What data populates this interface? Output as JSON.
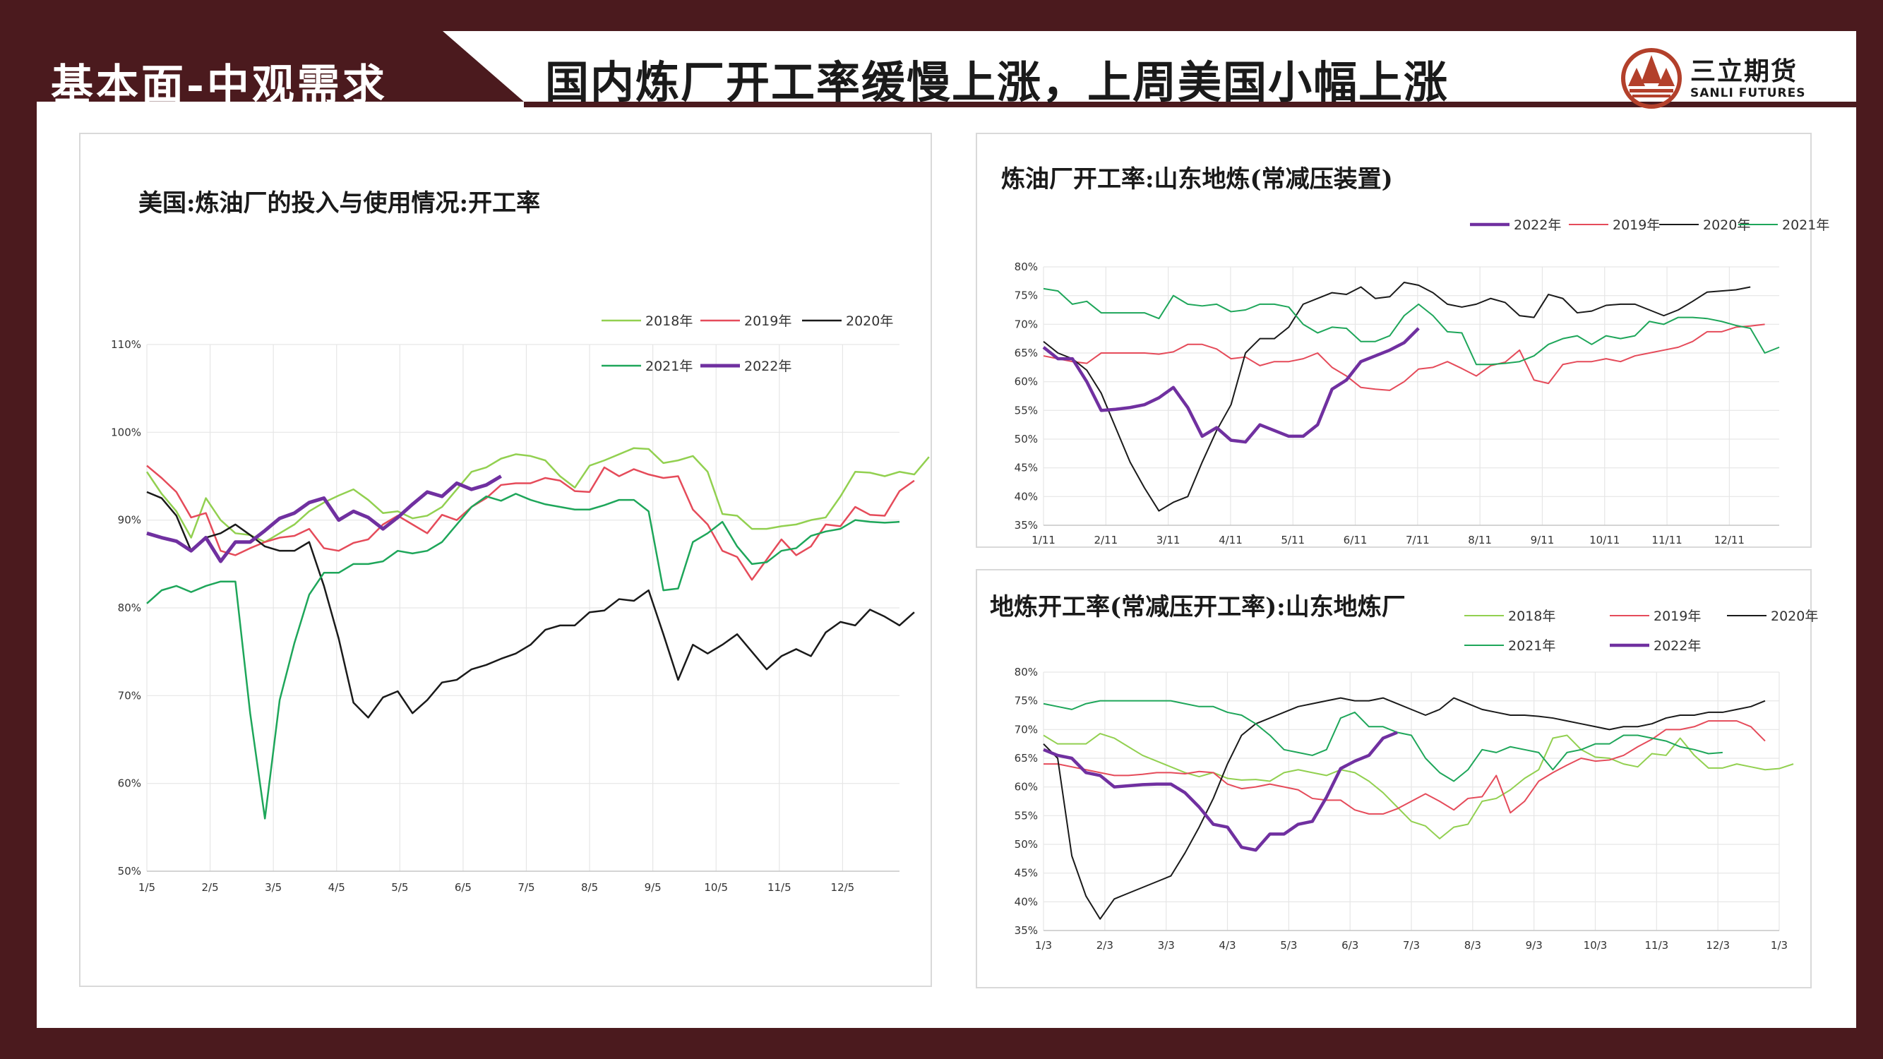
{
  "header": {
    "section_title": "基本面-中观需求",
    "main_title": "国内炼厂开工率缓慢上涨，上周美国小幅上涨",
    "brand_cn": "三立期货",
    "brand_en": "SANLI FUTURES",
    "colors": {
      "frame": "#4b1a1e",
      "accent": "#b3402b"
    }
  },
  "chart_data": [
    {
      "type": "line",
      "title": "美国:炼油厂的投入与使用情况:开工率",
      "x_ticks": [
        "1/5",
        "2/5",
        "3/5",
        "4/5",
        "5/5",
        "6/5",
        "7/5",
        "8/5",
        "9/5",
        "10/5",
        "11/5",
        "12/5"
      ],
      "y_ticks": [
        "50%",
        "60%",
        "70%",
        "80%",
        "90%",
        "100%",
        "110%"
      ],
      "ylim": [
        50,
        110
      ],
      "x_unit": "week",
      "x_range": [
        0,
        51
      ],
      "grid": true,
      "legend_position": "top-right",
      "series": [
        {
          "name": "2018年",
          "color": "#92d050",
          "width": 2.5,
          "values": [
            95.5,
            93,
            91,
            88,
            92.5,
            90,
            88.5,
            88.3,
            87.5,
            88.5,
            89.5,
            91,
            92,
            92.8,
            93.5,
            92.3,
            90.8,
            91,
            90.2,
            90.5,
            91.5,
            93.5,
            95.5,
            96,
            97,
            97.5,
            97.3,
            96.8,
            95,
            93.7,
            96.2,
            96.8,
            97.5,
            98.2,
            98.1,
            96.5,
            96.8,
            97.3,
            95.5,
            90.7,
            90.5,
            89,
            89,
            89.3,
            89.5,
            90,
            90.3,
            92.7,
            95.5,
            95.4,
            95,
            95.5,
            95.2,
            97.2
          ]
        },
        {
          "name": "2019年",
          "color": "#e54b5a",
          "width": 2.5,
          "values": [
            96.2,
            94.8,
            93.2,
            90.3,
            90.8,
            86.5,
            86,
            86.8,
            87.5,
            88,
            88.2,
            89,
            86.8,
            86.5,
            87.4,
            87.8,
            89.5,
            90.5,
            89.5,
            88.5,
            90.6,
            90,
            91.5,
            92.5,
            94,
            94.2,
            94.2,
            94.8,
            94.5,
            93.3,
            93.2,
            96,
            95,
            95.8,
            95.2,
            94.8,
            95,
            91.2,
            89.5,
            86.5,
            85.8,
            83.2,
            85.5,
            87.8,
            86,
            87,
            89.5,
            89.3,
            91.5,
            90.6,
            90.5,
            93.3,
            94.5
          ]
        },
        {
          "name": "2020年",
          "color": "#1a1a1a",
          "width": 2.5,
          "values": [
            93.2,
            92.5,
            90.5,
            86.5,
            88,
            88.5,
            89.5,
            88.3,
            87,
            86.5,
            86.5,
            87.5,
            82.5,
            76.5,
            69.2,
            67.5,
            69.8,
            70.5,
            68,
            69.5,
            71.5,
            71.8,
            73,
            73.5,
            74.2,
            74.8,
            75.8,
            77.5,
            78,
            78,
            79.5,
            79.7,
            81,
            80.8,
            82,
            77,
            71.8,
            75.8,
            74.8,
            75.8,
            77,
            75,
            73,
            74.5,
            75.3,
            74.5,
            77.2,
            78.4,
            78,
            79.8,
            79,
            78,
            79.5
          ]
        },
        {
          "name": "2021年",
          "color": "#1ea65a",
          "width": 2.5,
          "values": [
            80.5,
            82,
            82.5,
            81.8,
            82.5,
            83,
            83,
            68,
            56,
            69.5,
            76,
            81.5,
            84,
            84,
            85,
            85,
            85.3,
            86.5,
            86.2,
            86.5,
            87.5,
            89.5,
            91.5,
            92.7,
            92.2,
            93,
            92.3,
            91.8,
            91.5,
            91.2,
            91.2,
            91.7,
            92.3,
            92.3,
            91,
            82,
            82.2,
            87.5,
            88.5,
            89.8,
            87,
            85,
            85.2,
            86.5,
            86.8,
            88.2,
            88.7,
            89,
            90,
            89.8,
            89.7,
            89.8
          ]
        },
        {
          "name": "2022年",
          "color": "#7030a0",
          "width": 5,
          "values": [
            88.5,
            88,
            87.6,
            86.5,
            88,
            85.3,
            87.5,
            87.5,
            88.8,
            90.2,
            90.8,
            92,
            92.5,
            90,
            91,
            90.3,
            89,
            90.3,
            91.8,
            93.2,
            92.7,
            94.2,
            93.5,
            94,
            95
          ]
        }
      ]
    },
    {
      "type": "line",
      "title": "炼油厂开工率:山东地炼(常减压装置)",
      "x_ticks": [
        "1/11",
        "2/11",
        "3/11",
        "4/11",
        "5/11",
        "6/11",
        "7/11",
        "8/11",
        "9/11",
        "10/11",
        "11/11",
        "12/11"
      ],
      "y_ticks": [
        "35%",
        "40%",
        "45%",
        "50%",
        "55%",
        "60%",
        "65%",
        "70%",
        "75%",
        "80%"
      ],
      "ylim": [
        35,
        80
      ],
      "x_unit": "week",
      "x_range": [
        0,
        51
      ],
      "grid": true,
      "legend_position": "top",
      "series": [
        {
          "name": "2022年",
          "color": "#7030a0",
          "width": 4.5,
          "values": [
            66,
            64,
            64,
            60,
            55,
            55.2,
            55.5,
            56,
            57.2,
            59,
            55.5,
            50.5,
            52,
            49.8,
            49.5,
            52.5,
            51.5,
            50.5,
            50.5,
            52.5,
            58.7,
            60.3,
            63.5,
            64.5,
            65.5,
            66.8,
            69.3
          ]
        },
        {
          "name": "2019年",
          "color": "#e54b5a",
          "width": 2,
          "values": [
            64.5,
            64,
            63.5,
            63.2,
            65,
            65,
            65,
            65,
            64.8,
            65.2,
            66.5,
            66.5,
            65.7,
            64,
            64.3,
            62.8,
            63.5,
            63.5,
            64,
            65,
            62.5,
            61,
            59,
            58.7,
            58.5,
            60,
            62.2,
            62.5,
            63.5,
            62.3,
            61,
            62.8,
            63.4,
            65.5,
            60.3,
            59.7,
            63,
            63.5,
            63.5,
            64,
            63.5,
            64.5,
            65,
            65.5,
            66,
            67,
            68.7,
            68.7,
            69.5,
            69.7,
            70
          ]
        },
        {
          "name": "2020年",
          "color": "#1a1a1a",
          "width": 2,
          "values": [
            67,
            65,
            64,
            62,
            58,
            52,
            46,
            41.5,
            37.5,
            39,
            40,
            46,
            51.5,
            56,
            65,
            67.5,
            67.5,
            69.5,
            73.5,
            74.5,
            75.5,
            75.2,
            76.5,
            74.5,
            74.8,
            77.3,
            76.8,
            75.5,
            73.5,
            73,
            73.5,
            74.5,
            73.8,
            71.5,
            71.2,
            75.2,
            74.5,
            72,
            72.3,
            73.3,
            73.5,
            73.5,
            72.5,
            71.5,
            72.5,
            74,
            75.6,
            75.8,
            76,
            76.5
          ]
        },
        {
          "name": "2021年",
          "color": "#1ea65a",
          "width": 2,
          "values": [
            76.2,
            75.8,
            73.5,
            74,
            72,
            72,
            72,
            72,
            71,
            75,
            73.5,
            73.2,
            73.5,
            72.2,
            72.5,
            73.5,
            73.5,
            73,
            70,
            68.5,
            69.5,
            69.3,
            67,
            67,
            68,
            71.5,
            73.5,
            71.5,
            68.7,
            68.5,
            63,
            63,
            63.2,
            63.5,
            64.5,
            66.5,
            67.5,
            68,
            66.5,
            68,
            67.5,
            68,
            70.5,
            70,
            71.2,
            71.2,
            71,
            70.5,
            69.8,
            69.3,
            65,
            66
          ]
        }
      ]
    },
    {
      "type": "line",
      "title": "地炼开工率(常减压开工率):山东地炼厂",
      "x_ticks": [
        "1/3",
        "2/3",
        "3/3",
        "4/3",
        "5/3",
        "6/3",
        "7/3",
        "8/3",
        "9/3",
        "10/3",
        "11/3",
        "12/3",
        "1/3"
      ],
      "y_ticks": [
        "35%",
        "40%",
        "45%",
        "50%",
        "55%",
        "60%",
        "65%",
        "70%",
        "75%",
        "80%"
      ],
      "ylim": [
        35,
        80
      ],
      "x_unit": "week",
      "x_range": [
        0,
        52
      ],
      "grid": true,
      "legend_position": "top-right",
      "series": [
        {
          "name": "2018年",
          "color": "#92d050",
          "width": 2,
          "values": [
            69,
            67.5,
            67.5,
            67.5,
            69.3,
            68.5,
            67,
            65.5,
            64.5,
            63.5,
            62.5,
            61.8,
            62.5,
            61.5,
            61.2,
            61.3,
            61,
            62.5,
            63,
            62.5,
            62,
            63,
            62.5,
            61,
            59,
            56.5,
            54,
            53.2,
            51,
            53,
            53.5,
            57.5,
            58,
            59.5,
            61.5,
            63,
            68.5,
            69,
            66.5,
            65.2,
            65,
            64,
            63.5,
            65.8,
            65.5,
            68.5,
            65.5,
            63.3,
            63.3,
            64,
            63.5,
            63,
            63.2,
            64
          ]
        },
        {
          "name": "2019年",
          "color": "#e54b5a",
          "width": 2,
          "values": [
            64,
            64,
            63.5,
            63,
            62.5,
            62,
            62,
            62.2,
            62.5,
            62.5,
            62.3,
            62.7,
            62.5,
            60.5,
            59.7,
            60,
            60.5,
            60,
            59.5,
            58,
            57.7,
            57.7,
            56,
            55.3,
            55.3,
            56.2,
            57.5,
            58.8,
            57.5,
            56,
            58,
            58.3,
            62,
            55.5,
            57.5,
            61,
            62.5,
            63.8,
            65,
            64.5,
            64.7,
            65.5,
            67,
            68.3,
            70,
            70,
            70.5,
            71.5,
            71.5,
            71.5,
            70.5,
            68
          ]
        },
        {
          "name": "2020年",
          "color": "#1a1a1a",
          "width": 2,
          "values": [
            67.5,
            65,
            48,
            41,
            37,
            40.5,
            41.5,
            42.5,
            43.5,
            44.5,
            48.5,
            53,
            58,
            64,
            69,
            71,
            72,
            73,
            74,
            74.5,
            75,
            75.5,
            75,
            75,
            75.5,
            74.5,
            73.5,
            72.5,
            73.5,
            75.5,
            74.5,
            73.5,
            73,
            72.5,
            72.5,
            72.3,
            72,
            71.5,
            71,
            70.5,
            70,
            70.5,
            70.5,
            71,
            72,
            72.5,
            72.5,
            73,
            73,
            73.5,
            74,
            75
          ]
        },
        {
          "name": "2021年",
          "color": "#1ea65a",
          "width": 2,
          "values": [
            74.5,
            74,
            73.5,
            74.5,
            75,
            75,
            75,
            75,
            75,
            75,
            74.5,
            74,
            74,
            73,
            72.5,
            71,
            69,
            66.5,
            66,
            65.5,
            66.5,
            72,
            73,
            70.5,
            70.5,
            69.5,
            69,
            65,
            62.5,
            61,
            63,
            66.5,
            66,
            67,
            66.5,
            66,
            63,
            66,
            66.5,
            67.5,
            67.5,
            69,
            69,
            68.5,
            68,
            67,
            66.5,
            65.8,
            66
          ]
        },
        {
          "name": "2022年",
          "color": "#7030a0",
          "width": 4.5,
          "values": [
            66.5,
            65.5,
            65,
            62.5,
            62,
            60,
            60.2,
            60.4,
            60.5,
            60.5,
            59,
            56.5,
            53.5,
            53,
            49.5,
            49,
            51.8,
            51.8,
            53.5,
            54,
            58.2,
            63.2,
            64.5,
            65.5,
            68.5,
            69.5
          ]
        }
      ]
    }
  ]
}
